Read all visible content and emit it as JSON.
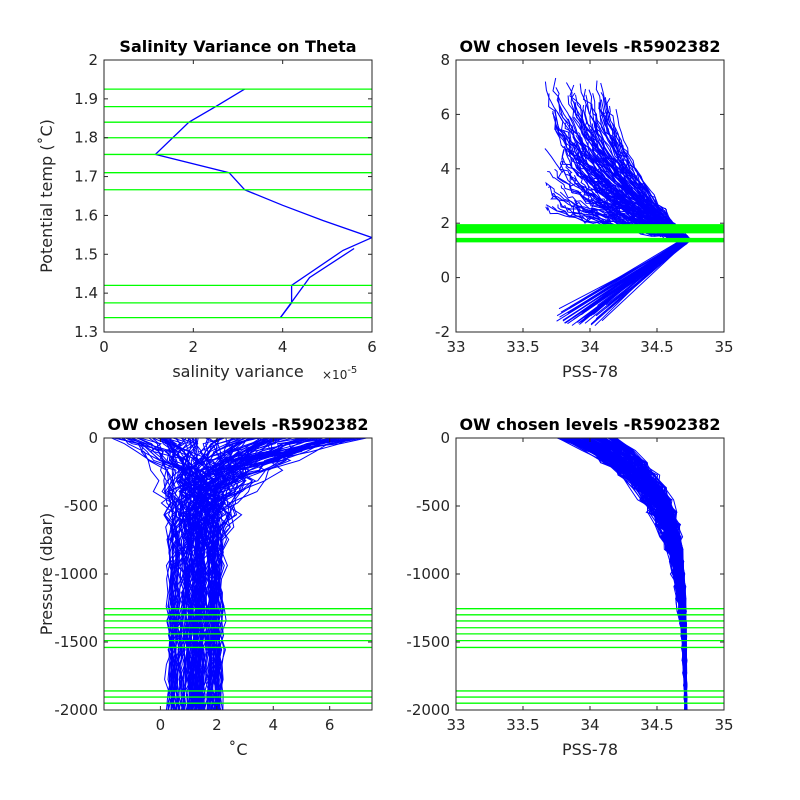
{
  "chart_data": [
    {
      "type": "line",
      "title": "Salinity Variance on Theta",
      "xlabel": "salinity variance",
      "x_exponent_label": "×10",
      "x_exponent_power": "-5",
      "ylabel": "Potential temp (˚C)",
      "xlim": [
        0,
        6
      ],
      "ylim": [
        1.3,
        2.0
      ],
      "xticks": [
        "0",
        "2",
        "4",
        "6"
      ],
      "yticks": [
        "1.3",
        "1.4",
        "1.5",
        "1.6",
        "1.7",
        "1.8",
        "1.9",
        "2"
      ],
      "series": [
        {
          "values": [
            [
              3.15,
              1.925
            ],
            [
              2.5,
              1.88
            ],
            [
              1.9,
              1.84
            ],
            [
              1.15,
              1.757
            ],
            [
              2.8,
              1.71
            ],
            [
              3.15,
              1.666
            ],
            [
              4.0,
              1.626
            ],
            [
              4.9,
              1.587
            ],
            [
              6.0,
              1.543
            ],
            [
              5.35,
              1.51
            ],
            [
              4.2,
              1.42
            ],
            [
              4.2,
              1.375
            ],
            [
              3.95,
              1.337
            ]
          ]
        },
        {
          "values": [
            [
              5.6,
              1.515
            ],
            [
              4.6,
              1.44
            ],
            [
              3.95,
              1.337
            ]
          ]
        }
      ],
      "chosen_levels": [
        1.925,
        1.88,
        1.84,
        1.8,
        1.757,
        1.71,
        1.666,
        1.42,
        1.375,
        1.337
      ],
      "colors": {
        "profiles": "#0000ff",
        "levels": "#00ff00"
      }
    },
    {
      "type": "line",
      "title": "OW chosen levels -R5902382",
      "xlabel": "PSS-78",
      "ylabel": "",
      "xlim": [
        33,
        35
      ],
      "ylim": [
        -2,
        8
      ],
      "xticks": [
        "33",
        "33.5",
        "34",
        "34.5",
        "35"
      ],
      "yticks": [
        "-2",
        "0",
        "2",
        "4",
        "6",
        "8"
      ],
      "chosen_levels": [
        1.925,
        1.88,
        1.84,
        1.8,
        1.757,
        1.71,
        1.666,
        1.42,
        1.375,
        1.337
      ],
      "colors": {
        "profiles": "#0000ff",
        "levels": "#00ff00"
      }
    },
    {
      "type": "line",
      "title": "OW chosen levels -R5902382",
      "xlabel": "˚C",
      "ylabel": "Pressure (dbar)",
      "xlim": [
        -2,
        7.5
      ],
      "ylim": [
        -2000,
        0
      ],
      "xticks": [
        "0",
        "2",
        "4",
        "6"
      ],
      "yticks": [
        "-2000",
        "-1500",
        "-1000",
        "-500",
        "0"
      ],
      "chosen_levels": [
        -1255,
        -1300,
        -1345,
        -1395,
        -1440,
        -1490,
        -1540,
        -1860,
        -1905,
        -1950
      ],
      "colors": {
        "profiles": "#0000ff",
        "levels": "#00ff00"
      }
    },
    {
      "type": "line",
      "title": "OW chosen levels -R5902382",
      "xlabel": "PSS-78",
      "ylabel": "",
      "xlim": [
        33,
        35
      ],
      "ylim": [
        -2000,
        0
      ],
      "xticks": [
        "33",
        "33.5",
        "34",
        "34.5",
        "35"
      ],
      "yticks": [
        "-2000",
        "-1500",
        "-1000",
        "-500",
        "0"
      ],
      "chosen_levels": [
        -1255,
        -1300,
        -1345,
        -1395,
        -1440,
        -1490,
        -1540,
        -1860,
        -1905,
        -1950
      ],
      "colors": {
        "profiles": "#0000ff",
        "levels": "#00ff00"
      }
    }
  ]
}
